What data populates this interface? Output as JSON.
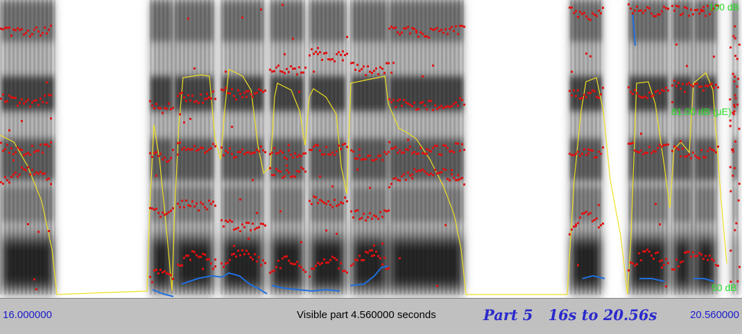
{
  "window": {
    "type": "spectrogram-viewer"
  },
  "spectrogram": {
    "db_labels": {
      "top": "100 dB",
      "middle": "81.00 dB (μE)",
      "bottom": "50 dB"
    },
    "colors": {
      "formant_points": "#e01010",
      "intensity_curve": "#f0e020",
      "pitch_curve": "#1e6fe0",
      "label_green": "#22dd22"
    }
  },
  "footer": {
    "time_start": "16.000000",
    "visible_part": "Visible part 4.560000 seconds",
    "part_title": "Part 5   16s to 20.56s",
    "time_end": "20.560000"
  }
}
